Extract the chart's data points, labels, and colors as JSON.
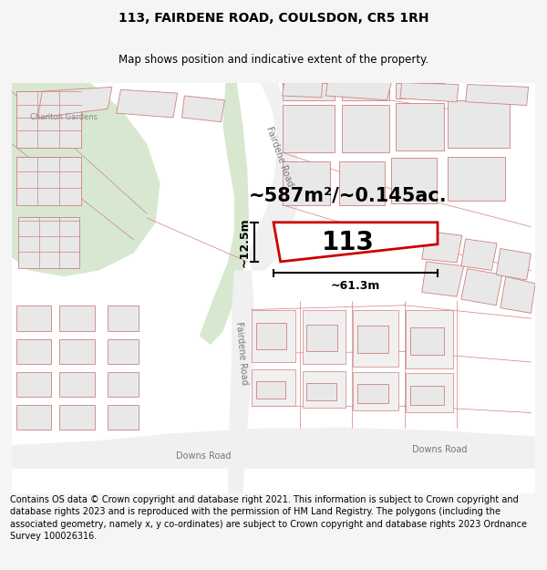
{
  "title": "113, FAIRDENE ROAD, COULSDON, CR5 1RH",
  "subtitle": "Map shows position and indicative extent of the property.",
  "footer": "Contains OS data © Crown copyright and database right 2021. This information is subject to Crown copyright and database rights 2023 and is reproduced with the permission of HM Land Registry. The polygons (including the associated geometry, namely x, y co-ordinates) are subject to Crown copyright and database rights 2023 Ordnance Survey 100026316.",
  "area_label": "~587m²/~0.145ac.",
  "plot_number": "113",
  "dim_width": "~61.3m",
  "dim_height": "~12.5m",
  "road_label_top": "Fairdene Road",
  "road_label_bot": "Fairdene Road",
  "road_label_downs1": "Downs Road",
  "road_label_downs2": "Downs Road",
  "road_label_charlton": "Charlton Gardens",
  "bg_color": "#f5f5f5",
  "map_bg": "#ffffff",
  "plot_edge": "#cc0000",
  "road_fill": "#f0f0f0",
  "building_fill": "#e8e8e8",
  "building_edge": "#d08080",
  "green_fill": "#d8e8d0",
  "title_fontsize": 10,
  "subtitle_fontsize": 8.5,
  "footer_fontsize": 7.0,
  "area_fontsize": 15,
  "plot_num_fontsize": 20,
  "dim_fontsize": 9,
  "road_fontsize": 7
}
